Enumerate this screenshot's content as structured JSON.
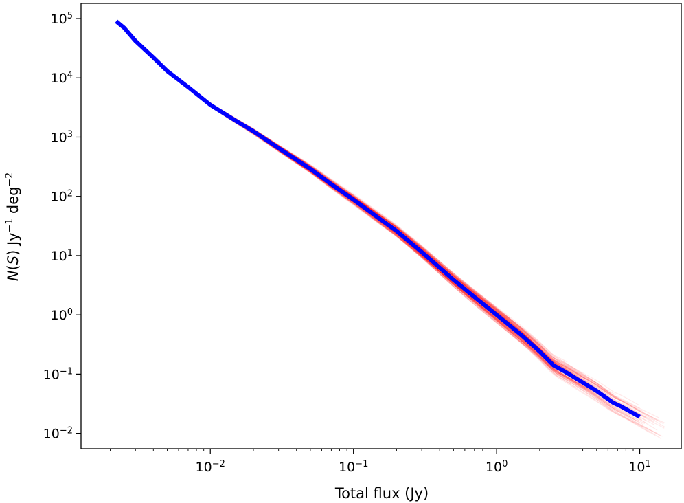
{
  "chart_data": {
    "type": "line",
    "xlabel": "Total flux (Jy)",
    "ylabel": {
      "prefix": "N",
      "paren_open": "(",
      "var": "S",
      "paren_close": ")",
      "unit1": " Jy",
      "exp1": "−1",
      "unit2": " deg",
      "exp2": "−2"
    },
    "xscale": "log",
    "yscale": "log",
    "xlim": [
      0.00125,
      19.5
    ],
    "ylim": [
      0.0055,
      180000
    ],
    "grid": false,
    "x_ticks": [
      {
        "base": "10",
        "exp": "−2",
        "value": 0.01
      },
      {
        "base": "10",
        "exp": "−1",
        "value": 0.1
      },
      {
        "base": "10",
        "exp": "0",
        "value": 1
      },
      {
        "base": "10",
        "exp": "1",
        "value": 10
      }
    ],
    "y_ticks": [
      {
        "base": "10",
        "exp": "−2",
        "value": 0.01
      },
      {
        "base": "10",
        "exp": "−1",
        "value": 0.1
      },
      {
        "base": "10",
        "exp": "0",
        "value": 1
      },
      {
        "base": "10",
        "exp": "1",
        "value": 10
      },
      {
        "base": "10",
        "exp": "2",
        "value": 100
      },
      {
        "base": "10",
        "exp": "3",
        "value": 1000
      },
      {
        "base": "10",
        "exp": "4",
        "value": 10000
      },
      {
        "base": "10",
        "exp": "5",
        "value": 100000
      }
    ],
    "series": [
      {
        "color": "#0000ff",
        "style": "thick median line",
        "x": [
          0.0022,
          0.0025,
          0.003,
          0.004,
          0.005,
          0.007,
          0.01,
          0.015,
          0.02,
          0.03,
          0.05,
          0.07,
          0.1,
          0.15,
          0.2,
          0.3,
          0.5,
          0.7,
          1.0,
          1.5,
          2.0,
          2.5,
          3.0,
          4.0,
          5.0,
          6.5,
          7.5,
          10.0
        ],
        "y": [
          90000,
          70000,
          42000,
          22000,
          13000,
          7000,
          3500,
          1900,
          1250,
          650,
          290,
          160,
          88,
          43,
          26,
          11.5,
          3.9,
          2.0,
          1.0,
          0.45,
          0.24,
          0.14,
          0.11,
          0.072,
          0.052,
          0.033,
          0.028,
          0.019
        ]
      }
    ],
    "band": {
      "color": "#ff0000",
      "style": "many faint realization lines",
      "count": 140,
      "x_range": [
        0.003,
        15
      ]
    }
  }
}
